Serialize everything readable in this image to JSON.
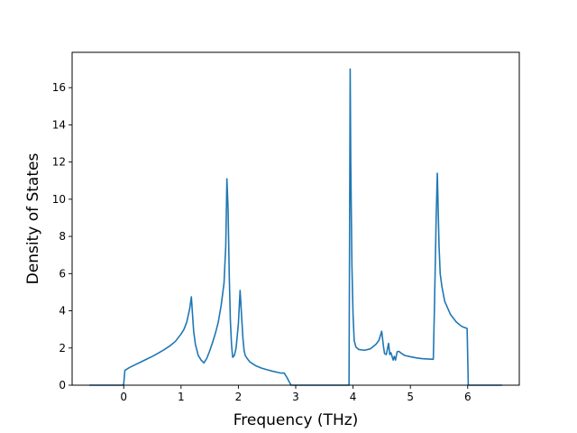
{
  "chart_data": {
    "type": "line",
    "xlabel": "Frequency (THz)",
    "ylabel": "Density of States",
    "xlim": [
      -0.9,
      6.9
    ],
    "ylim": [
      0,
      17.9
    ],
    "x_ticks": [
      0,
      1,
      2,
      3,
      4,
      5,
      6
    ],
    "y_ticks": [
      0,
      2,
      4,
      6,
      8,
      10,
      12,
      14,
      16
    ],
    "grid": false,
    "legend": "none",
    "line_color": "#1f77b4",
    "series": [
      {
        "x": [
          -0.6,
          -0.02,
          0.0,
          0.02,
          0.1,
          0.2,
          0.3,
          0.4,
          0.5,
          0.6,
          0.7,
          0.8,
          0.9,
          1.0,
          1.05,
          1.1,
          1.15,
          1.18,
          1.2,
          1.22,
          1.25,
          1.3,
          1.35,
          1.4,
          1.45,
          1.5,
          1.55,
          1.6,
          1.65,
          1.7,
          1.75,
          1.78,
          1.8,
          1.82,
          1.84,
          1.86,
          1.88,
          1.9,
          1.93,
          1.96,
          2.0,
          2.03,
          2.06,
          2.08,
          2.1,
          2.12,
          2.15,
          2.2,
          2.3,
          2.4,
          2.5,
          2.6,
          2.7,
          2.75,
          2.8,
          2.85,
          2.9,
          2.92,
          3.0,
          3.5,
          3.93,
          3.95,
          3.96,
          3.98,
          4.0,
          4.02,
          4.05,
          4.1,
          4.2,
          4.3,
          4.4,
          4.45,
          4.5,
          4.53,
          4.55,
          4.58,
          4.62,
          4.64,
          4.66,
          4.7,
          4.72,
          4.74,
          4.77,
          4.8,
          4.85,
          4.9,
          5.0,
          5.1,
          5.2,
          5.3,
          5.4,
          5.42,
          5.45,
          5.47,
          5.5,
          5.52,
          5.55,
          5.6,
          5.7,
          5.8,
          5.9,
          5.99,
          6.01,
          6.1,
          6.6
        ],
        "values": [
          0,
          0,
          0.05,
          0.8,
          0.95,
          1.1,
          1.25,
          1.4,
          1.55,
          1.72,
          1.9,
          2.1,
          2.35,
          2.75,
          3.0,
          3.4,
          4.1,
          4.75,
          3.8,
          2.9,
          2.2,
          1.6,
          1.35,
          1.2,
          1.45,
          1.85,
          2.3,
          2.8,
          3.4,
          4.3,
          5.5,
          7.5,
          11.1,
          9.5,
          6.0,
          3.5,
          2.2,
          1.5,
          1.6,
          2.0,
          3.3,
          5.1,
          3.5,
          2.5,
          1.85,
          1.6,
          1.45,
          1.25,
          1.05,
          0.92,
          0.83,
          0.75,
          0.68,
          0.65,
          0.65,
          0.4,
          0.1,
          0,
          0,
          0,
          0,
          17.0,
          12.0,
          6.5,
          3.8,
          2.4,
          2.05,
          1.92,
          1.88,
          1.95,
          2.2,
          2.4,
          2.9,
          2.1,
          1.7,
          1.65,
          2.25,
          1.65,
          1.75,
          1.35,
          1.55,
          1.35,
          1.8,
          1.82,
          1.7,
          1.6,
          1.53,
          1.47,
          1.43,
          1.41,
          1.39,
          4.2,
          9.0,
          11.4,
          7.5,
          6.0,
          5.3,
          4.5,
          3.8,
          3.4,
          3.15,
          3.05,
          0,
          0,
          0
        ]
      }
    ]
  }
}
